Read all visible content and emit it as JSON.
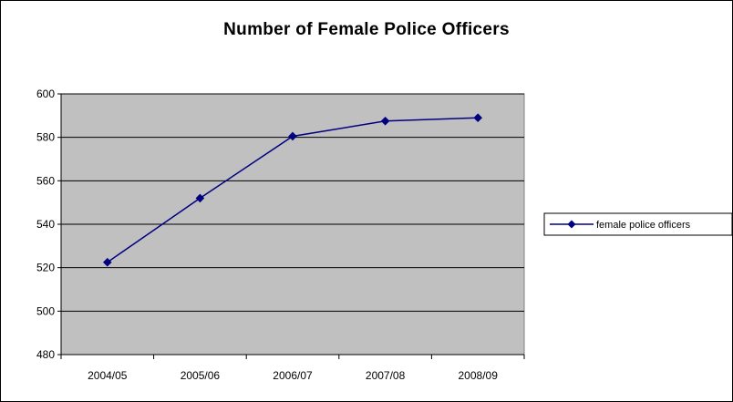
{
  "chart_data": {
    "type": "line",
    "title": "Number of Female Police Officers",
    "xlabel": "",
    "ylabel": "",
    "categories": [
      "2004/05",
      "2005/06",
      "2006/07",
      "2007/08",
      "2008/09"
    ],
    "series": [
      {
        "name": "female police officers",
        "values": [
          522.5,
          552,
          580.5,
          587.5,
          589
        ]
      }
    ],
    "ylim": [
      480,
      600
    ],
    "yticks": [
      "480",
      "500",
      "520",
      "540",
      "560",
      "580",
      "600"
    ],
    "grid": true,
    "legend_position": "right",
    "colors": {
      "series": "#000080",
      "plot_background": "#c0c0c0",
      "grid": "#000000"
    }
  }
}
